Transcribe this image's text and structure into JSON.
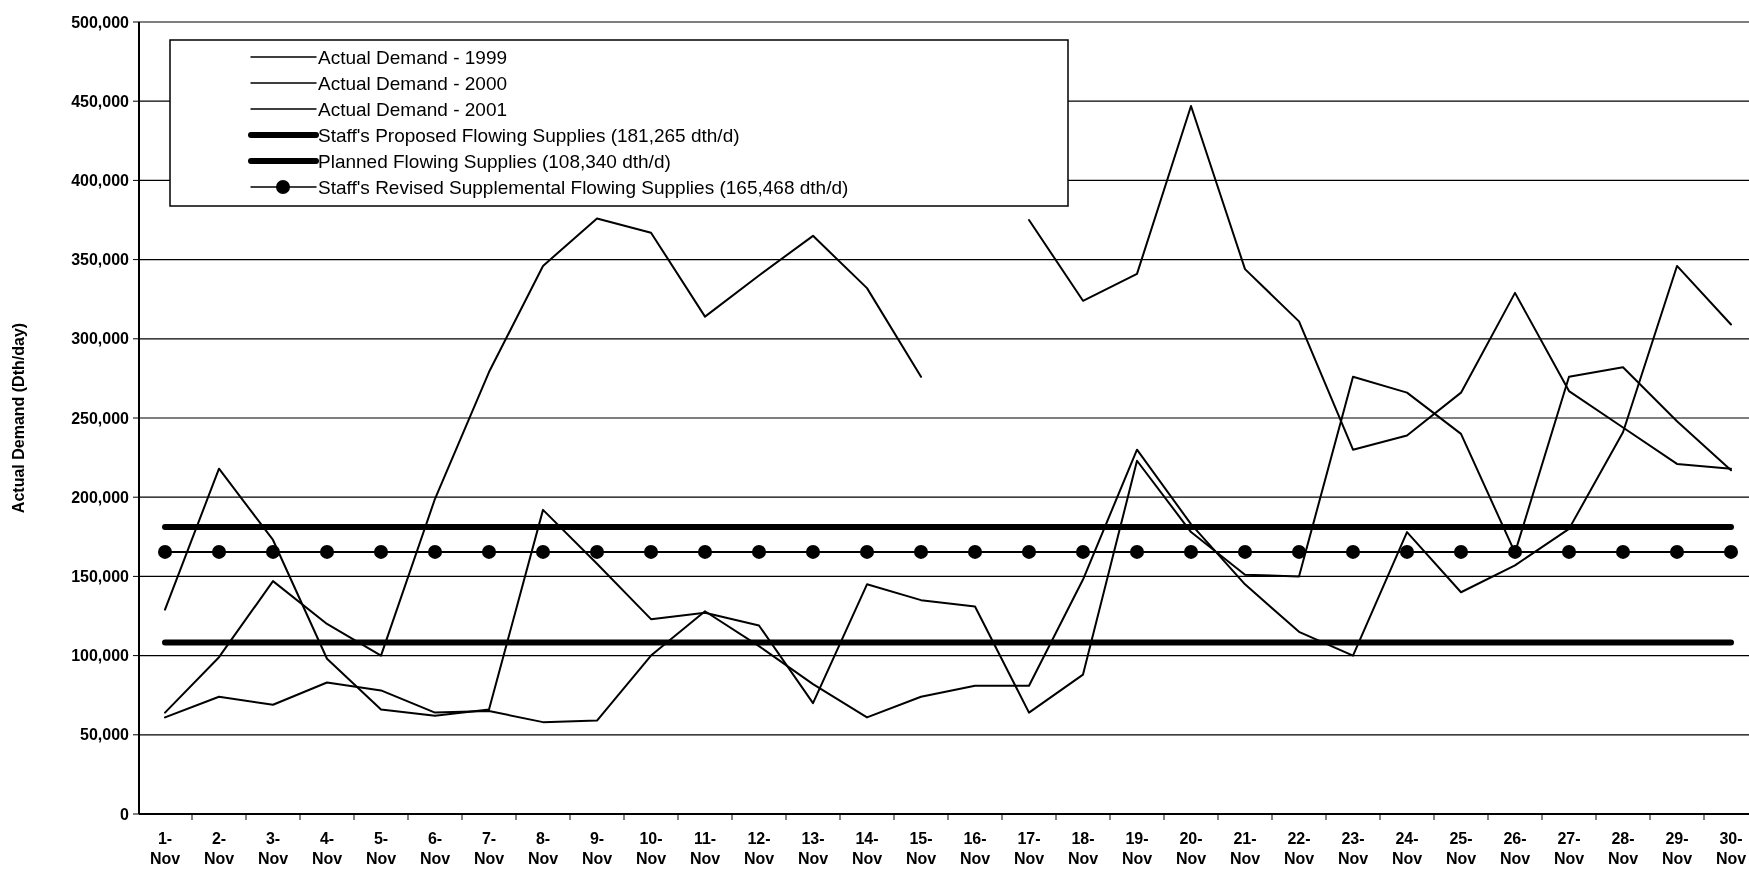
{
  "chart_data": {
    "type": "line",
    "ylabel": "Actual Demand (Dth/day)",
    "categories": [
      "1-Nov",
      "2-Nov",
      "3-Nov",
      "4-Nov",
      "5-Nov",
      "6-Nov",
      "7-Nov",
      "8-Nov",
      "9-Nov",
      "10-Nov",
      "11-Nov",
      "12-Nov",
      "13-Nov",
      "14-Nov",
      "15-Nov",
      "16-Nov",
      "17-Nov",
      "18-Nov",
      "19-Nov",
      "20-Nov",
      "21-Nov",
      "22-Nov",
      "23-Nov",
      "24-Nov",
      "25-Nov",
      "26-Nov",
      "27-Nov",
      "28-Nov",
      "29-Nov",
      "30-Nov"
    ],
    "ylim": [
      0,
      500000
    ],
    "yticks": [
      {
        "value": 0,
        "label": "0"
      },
      {
        "value": 50000,
        "label": "50,000"
      },
      {
        "value": 100000,
        "label": "100,000"
      },
      {
        "value": 150000,
        "label": "150,000"
      },
      {
        "value": 200000,
        "label": "200,000"
      },
      {
        "value": 250000,
        "label": "250,000"
      },
      {
        "value": 300000,
        "label": "300,000"
      },
      {
        "value": 350000,
        "label": "350,000"
      },
      {
        "value": 400000,
        "label": "400,000"
      },
      {
        "value": 450000,
        "label": "450,000"
      },
      {
        "value": 500000,
        "label": "500,000"
      }
    ],
    "grid": "y",
    "legend": "top left",
    "marker": "none",
    "series": [
      {
        "name": "Actual Demand - 1999",
        "color": "#000000",
        "values": [
          129000,
          218000,
          173000,
          98000,
          66000,
          62000,
          66000,
          192000,
          158000,
          123000,
          127000,
          119000,
          70000,
          145000,
          135000,
          131000,
          64000,
          88000,
          223000,
          178000,
          151000,
          150000,
          276000,
          266000,
          240000,
          165000,
          276000,
          282000,
          248000,
          217000
        ]
      },
      {
        "name": "Actual Demand - 2000",
        "color": "#000000",
        "values": [
          64000,
          99000,
          147000,
          120000,
          100000,
          199000,
          279000,
          346000,
          376000,
          367000,
          314000,
          340000,
          365000,
          332000,
          276000,
          null,
          375000,
          324000,
          341000,
          447000,
          344000,
          311000,
          230000,
          239000,
          266000,
          329000,
          267000,
          244000,
          221000,
          218000
        ]
      },
      {
        "name": "Actual Demand - 2001",
        "color": "#000000",
        "values": [
          61000,
          74000,
          69000,
          83000,
          78000,
          64000,
          65000,
          58000,
          59000,
          100000,
          128000,
          106000,
          82000,
          61000,
          74000,
          81000,
          81000,
          148000,
          230000,
          183000,
          145000,
          115000,
          100000,
          178000,
          140000,
          157000,
          180000,
          241000,
          346000,
          309000
        ]
      },
      {
        "name": "Staff's Proposed Flowing Supplies (181,265 dth/d)",
        "color": "#000000",
        "values": [
          181265,
          181265,
          181265,
          181265,
          181265,
          181265,
          181265,
          181265,
          181265,
          181265,
          181265,
          181265,
          181265,
          181265,
          181265,
          181265,
          181265,
          181265,
          181265,
          181265,
          181265,
          181265,
          181265,
          181265,
          181265,
          181265,
          181265,
          181265,
          181265,
          181265
        ]
      },
      {
        "name": "Planned Flowing Supplies (108,340 dth/d)",
        "color": "#000000",
        "values": [
          108340,
          108340,
          108340,
          108340,
          108340,
          108340,
          108340,
          108340,
          108340,
          108340,
          108340,
          108340,
          108340,
          108340,
          108340,
          108340,
          108340,
          108340,
          108340,
          108340,
          108340,
          108340,
          108340,
          108340,
          108340,
          108340,
          108340,
          108340,
          108340,
          108340
        ]
      },
      {
        "name": "Staff's Revised Supplemental Flowing Supplies (165,468 dth/d)",
        "color": "#000000",
        "marker": "circle",
        "values": [
          165468,
          165468,
          165468,
          165468,
          165468,
          165468,
          165468,
          165468,
          165468,
          165468,
          165468,
          165468,
          165468,
          165468,
          165468,
          165468,
          165468,
          165468,
          165468,
          165468,
          165468,
          165468,
          165468,
          165468,
          165468,
          165468,
          165468,
          165468,
          165468,
          165468
        ]
      }
    ]
  }
}
